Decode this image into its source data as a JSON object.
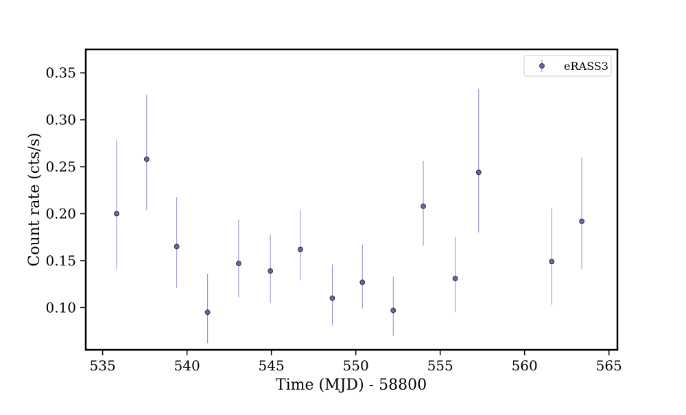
{
  "chart_data": {
    "type": "scatter",
    "title": "",
    "xlabel": "Time (MJD) - 58800",
    "ylabel": "Count rate (cts/s)",
    "xlim": [
      534.0,
      565.5
    ],
    "ylim": [
      0.055,
      0.375
    ],
    "xticks": [
      535,
      540,
      545,
      550,
      555,
      560,
      565
    ],
    "yticks": [
      0.1,
      0.15,
      0.2,
      0.25,
      0.3,
      0.35
    ],
    "xtick_labels": [
      "535",
      "540",
      "545",
      "550",
      "555",
      "560",
      "565"
    ],
    "ytick_labels": [
      "0.10",
      "0.15",
      "0.20",
      "0.25",
      "0.30",
      "0.35"
    ],
    "grid": false,
    "legend_position": "top-right",
    "series": [
      {
        "name": "eRASS3",
        "marker_color": "#6a64a6",
        "errorbar_color": "#8f8bc9",
        "points": [
          {
            "x": 535.83,
            "y": 0.2,
            "ylow": 0.141,
            "yhigh": 0.279
          },
          {
            "x": 537.61,
            "y": 0.258,
            "ylow": 0.204,
            "yhigh": 0.327
          },
          {
            "x": 539.39,
            "y": 0.165,
            "ylow": 0.121,
            "yhigh": 0.218
          },
          {
            "x": 541.22,
            "y": 0.095,
            "ylow": 0.062,
            "yhigh": 0.136
          },
          {
            "x": 543.06,
            "y": 0.147,
            "ylow": 0.111,
            "yhigh": 0.194
          },
          {
            "x": 544.94,
            "y": 0.139,
            "ylow": 0.105,
            "yhigh": 0.178
          },
          {
            "x": 546.72,
            "y": 0.162,
            "ylow": 0.129,
            "yhigh": 0.204
          },
          {
            "x": 548.61,
            "y": 0.11,
            "ylow": 0.081,
            "yhigh": 0.146
          },
          {
            "x": 550.39,
            "y": 0.127,
            "ylow": 0.099,
            "yhigh": 0.167
          },
          {
            "x": 552.22,
            "y": 0.097,
            "ylow": 0.07,
            "yhigh": 0.133
          },
          {
            "x": 554.0,
            "y": 0.208,
            "ylow": 0.166,
            "yhigh": 0.256
          },
          {
            "x": 555.89,
            "y": 0.131,
            "ylow": 0.095,
            "yhigh": 0.175
          },
          {
            "x": 557.28,
            "y": 0.244,
            "ylow": 0.18,
            "yhigh": 0.333
          },
          {
            "x": 561.61,
            "y": 0.149,
            "ylow": 0.103,
            "yhigh": 0.206
          },
          {
            "x": 563.39,
            "y": 0.192,
            "ylow": 0.141,
            "yhigh": 0.26
          }
        ]
      }
    ]
  }
}
